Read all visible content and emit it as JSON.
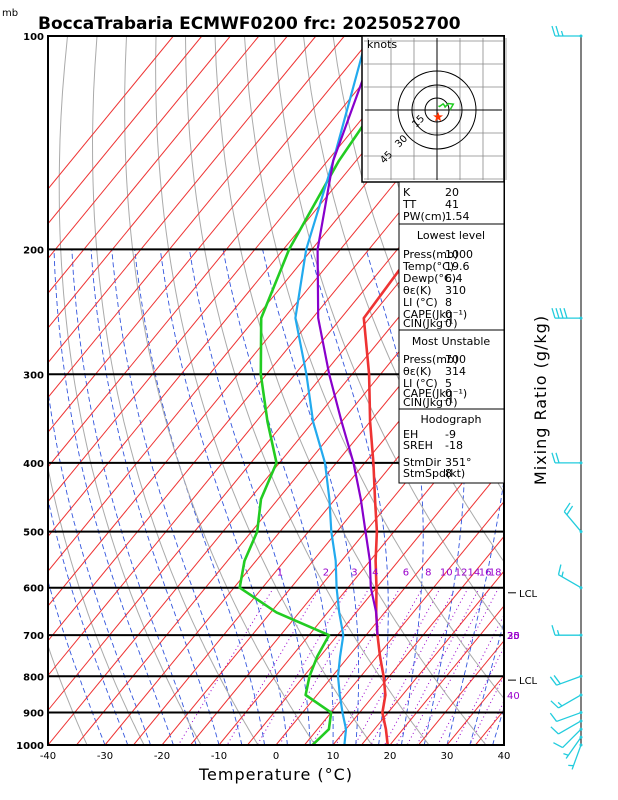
{
  "title": "BoccaTrabaria ECMWF0200 frc: 2025052700",
  "pressure_unit": "mb",
  "colors": {
    "temperature": "#ee3333",
    "dewpoint": "#22cc22",
    "parcel": "#8800cc",
    "wetbulb": "#22aaee",
    "isotherm": "#ee3333",
    "dry_adiabat": "#aaaaaa",
    "moist_adiabat": "#3355dd",
    "mixing_ratio": "#9900cc",
    "wind_barb": "#22ccdd",
    "storm_motion": "#ff3300"
  },
  "hodograph": {
    "unit_label": "knots",
    "ring_labels": [
      "15",
      "30",
      "45"
    ]
  },
  "indices": {
    "rows": [
      {
        "label": "K",
        "value": "20"
      },
      {
        "label": "TT",
        "value": "41"
      },
      {
        "label": "PW(cm)",
        "value": "1.54"
      }
    ],
    "lowest_level": {
      "header": "Lowest level",
      "rows": [
        {
          "label": "Press(mb)",
          "value": "1000"
        },
        {
          "label": "Temp(°C)",
          "value": "19.6"
        },
        {
          "label": "Dewp(°C)",
          "value": "6.4"
        },
        {
          "label": "θε(K)",
          "value": "310"
        },
        {
          "label": "LI (°C)",
          "value": "8"
        },
        {
          "label": "CAPE(Jkg⁻¹)",
          "value": "0"
        },
        {
          "label": "CIN(Jkg⁻¹)",
          "value": "0"
        }
      ]
    },
    "most_unstable": {
      "header": "Most Unstable",
      "rows": [
        {
          "label": "Press(mb)",
          "value": "700"
        },
        {
          "label": "θε(K)",
          "value": "314"
        },
        {
          "label": "LI (°C)",
          "value": "5"
        },
        {
          "label": "CAPE(Jkg⁻¹)",
          "value": "0"
        },
        {
          "label": "CIN(Jkg⁻¹)",
          "value": "0"
        }
      ]
    },
    "hodograph": {
      "header": "Hodograph",
      "rows": [
        {
          "label": "EH",
          "value": "-9"
        },
        {
          "label": "SREH",
          "value": "-18"
        },
        {
          "label": "StmDir",
          "value": "351°"
        },
        {
          "label": "StmSpd(kt)",
          "value": "8"
        }
      ]
    }
  },
  "lcl_labels": [
    {
      "text": "LCL",
      "p": 610
    },
    {
      "text": "LCL",
      "p": 810
    }
  ],
  "chart_data": {
    "type": "line",
    "title": "BoccaTrabaria ECMWF0200 frc: 2025052700",
    "xlabel": "Temperature (°C)",
    "ylabel": "mb",
    "right_label": "Mixing Ratio (g/kg)",
    "xlim": [
      -40,
      40
    ],
    "ylim": [
      1000,
      100
    ],
    "y_scale": "log",
    "x_ticks": [
      -40,
      -30,
      -20,
      -10,
      0,
      10,
      20,
      30,
      40
    ],
    "p_levels": [
      100,
      200,
      300,
      400,
      500,
      600,
      700,
      800,
      900,
      1000
    ],
    "mixing_ratio_lines": [
      "1",
      "2",
      "3",
      "4",
      "6",
      "8",
      "10",
      "12",
      "14",
      "16",
      "18",
      "20",
      "25",
      "30",
      "35",
      "40"
    ],
    "grid": true,
    "series": [
      {
        "key": "temperature",
        "points": [
          [
            1000,
            19.6
          ],
          [
            950,
            17
          ],
          [
            900,
            14
          ],
          [
            850,
            12
          ],
          [
            800,
            9
          ],
          [
            750,
            5.5
          ],
          [
            700,
            2
          ],
          [
            650,
            -1.5
          ],
          [
            600,
            -5
          ],
          [
            550,
            -9
          ],
          [
            500,
            -13
          ],
          [
            450,
            -18
          ],
          [
            400,
            -23.5
          ],
          [
            350,
            -30
          ],
          [
            300,
            -37
          ],
          [
            250,
            -46
          ],
          [
            200,
            -47
          ],
          [
            150,
            -49
          ],
          [
            100,
            -52
          ]
        ]
      },
      {
        "key": "dewpoint",
        "points": [
          [
            1000,
            6.4
          ],
          [
            950,
            7
          ],
          [
            900,
            5
          ],
          [
            850,
            -2
          ],
          [
            800,
            -4
          ],
          [
            750,
            -5.5
          ],
          [
            700,
            -6.5
          ],
          [
            650,
            -19
          ],
          [
            600,
            -29
          ],
          [
            550,
            -32
          ],
          [
            500,
            -34
          ],
          [
            450,
            -38
          ],
          [
            400,
            -40.5
          ],
          [
            350,
            -48
          ],
          [
            300,
            -56
          ],
          [
            250,
            -64
          ],
          [
            200,
            -69
          ],
          [
            150,
            -73
          ],
          [
            100,
            -76
          ]
        ]
      },
      {
        "key": "wetbulb",
        "points": [
          [
            1000,
            12
          ],
          [
            950,
            10
          ],
          [
            900,
            7
          ],
          [
            850,
            4
          ],
          [
            800,
            1
          ],
          [
            750,
            -1.5
          ],
          [
            700,
            -4
          ],
          [
            650,
            -8
          ],
          [
            600,
            -12
          ],
          [
            550,
            -16
          ],
          [
            500,
            -21
          ],
          [
            450,
            -26
          ],
          [
            400,
            -32
          ],
          [
            350,
            -40
          ],
          [
            300,
            -48
          ],
          [
            250,
            -58
          ],
          [
            200,
            -66
          ],
          [
            150,
            -74
          ],
          [
            100,
            -86
          ]
        ]
      },
      {
        "key": "parcel",
        "points": [
          [
            700,
            2
          ],
          [
            650,
            -1.5
          ],
          [
            600,
            -6
          ],
          [
            550,
            -10
          ],
          [
            500,
            -15
          ],
          [
            450,
            -20.5
          ],
          [
            400,
            -27
          ],
          [
            350,
            -35
          ],
          [
            300,
            -44
          ],
          [
            250,
            -54
          ],
          [
            200,
            -64
          ],
          [
            150,
            -74
          ],
          [
            100,
            -84
          ]
        ]
      }
    ],
    "wind_profile": [
      {
        "p": 1000,
        "dir": 200,
        "spd": 5
      },
      {
        "p": 975,
        "dir": 215,
        "spd": 5
      },
      {
        "p": 950,
        "dir": 225,
        "spd": 10
      },
      {
        "p": 925,
        "dir": 240,
        "spd": 10
      },
      {
        "p": 900,
        "dir": 250,
        "spd": 10
      },
      {
        "p": 850,
        "dir": 240,
        "spd": 15
      },
      {
        "p": 800,
        "dir": 250,
        "spd": 20
      },
      {
        "p": 700,
        "dir": 270,
        "spd": 15
      },
      {
        "p": 600,
        "dir": 300,
        "spd": 15
      },
      {
        "p": 500,
        "dir": 320,
        "spd": 20
      },
      {
        "p": 400,
        "dir": 270,
        "spd": 20
      },
      {
        "p": 250,
        "dir": 270,
        "spd": 40
      },
      {
        "p": 100,
        "dir": 270,
        "spd": 25
      }
    ]
  }
}
